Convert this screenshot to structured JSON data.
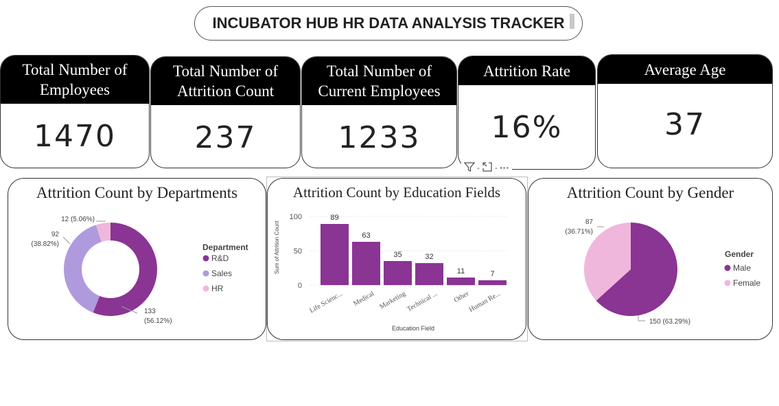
{
  "header": {
    "title": "INCUBATOR HUB HR DATA ANALYSIS TRACKER"
  },
  "kpis": [
    {
      "label_line1": "Total Number of",
      "label_line2": "Employees",
      "value": "1470"
    },
    {
      "label_line1": "Total Number of",
      "label_line2": "Attrition Count",
      "value": "237"
    },
    {
      "label_line1": "Total Number of",
      "label_line2": "Current Employees",
      "value": "1233"
    },
    {
      "label_line1": "Attrition Rate",
      "label_line2": "",
      "value": "16%"
    },
    {
      "label_line1": "Average Age",
      "label_line2": "",
      "value": "37"
    }
  ],
  "toolbar": {
    "sep1": "-",
    "sep2": "-",
    "more": "···"
  },
  "colors": {
    "dark_purple": "#8a3494",
    "lavender": "#b09ade",
    "pink": "#f0b7dc",
    "header_black": "#000000"
  },
  "chart_data": [
    {
      "type": "donut",
      "title": "Attrition Count by Departments",
      "legend_title": "Department",
      "legend_position": "right",
      "slices": [
        {
          "name": "R&D",
          "value": 133,
          "label": "133",
          "pct": "(56.12%)",
          "color": "#8a3494"
        },
        {
          "name": "Sales",
          "value": 92,
          "label": "92",
          "pct": "(38.82%)",
          "color": "#b09ade"
        },
        {
          "name": "HR",
          "value": 12,
          "label": "12 (5.06%)",
          "pct": "",
          "color": "#f0b7dc"
        }
      ]
    },
    {
      "type": "bar",
      "title": "Attrition Count by Education Fields",
      "xlabel": "Education Field",
      "ylabel": "Sum of Attrition Count",
      "ylim": [
        0,
        100
      ],
      "yticks": [
        "0",
        "50",
        "100"
      ],
      "categories": [
        "Life Scienc...",
        "Medical",
        "Marketing",
        "Technical ...",
        "Other",
        "Human Re..."
      ],
      "values": [
        89,
        63,
        35,
        32,
        11,
        7
      ],
      "value_labels": [
        "89",
        "63",
        "35",
        "32",
        "11",
        "7"
      ],
      "color": "#8a3494"
    },
    {
      "type": "pie",
      "title": "Attrition Count by Gender",
      "legend_title": "Gender",
      "legend_position": "right",
      "slices": [
        {
          "name": "Male",
          "value": 150,
          "label": "150 (63.29%)",
          "color": "#8a3494"
        },
        {
          "name": "Female",
          "value": 87,
          "label": "87",
          "pct": "(36.71%)",
          "color": "#f0b7dc"
        }
      ]
    }
  ]
}
